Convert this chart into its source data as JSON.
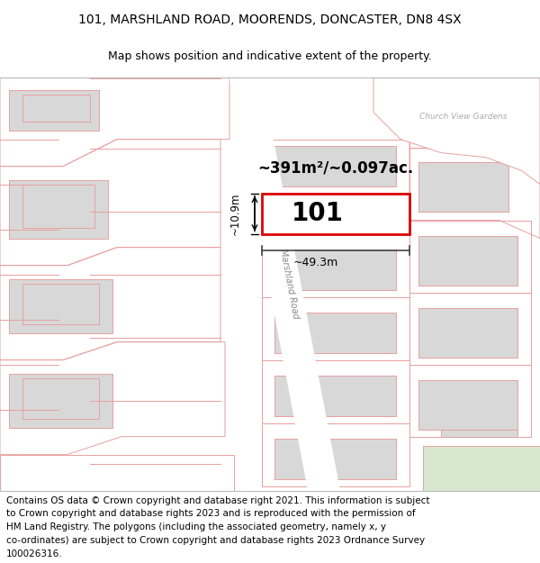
{
  "title": "101, MARSHLAND ROAD, MOORENDS, DONCASTER, DN8 4SX",
  "subtitle": "Map shows position and indicative extent of the property.",
  "footer_lines": [
    "Contains OS data © Crown copyright and database right 2021. This information is subject",
    "to Crown copyright and database rights 2023 and is reproduced with the permission of",
    "HM Land Registry. The polygons (including the associated geometry, namely x, y",
    "co-ordinates) are subject to Crown copyright and database rights 2023 Ordnance Survey",
    "100026316."
  ],
  "area_text": "~391m²/~0.097ac.",
  "width_text": "~49.3m",
  "depth_text": "~10.9m",
  "label_101": "101",
  "church_view": "Church View Gardens",
  "road_label": "Marshland Road",
  "map_bg": "#ffffff",
  "plot_line_color": "#e8a0a0",
  "highlight_color": "#dd0000",
  "building_fill": "#d8d8d8",
  "building_edge": "#e8a0a0",
  "road_fill": "#ffffff",
  "green_fill": "#d8e8d0",
  "text_gray": "#aaaaaa",
  "title_fontsize": 10,
  "subtitle_fontsize": 9,
  "footer_fontsize": 7.5,
  "annot_fontsize": 11
}
